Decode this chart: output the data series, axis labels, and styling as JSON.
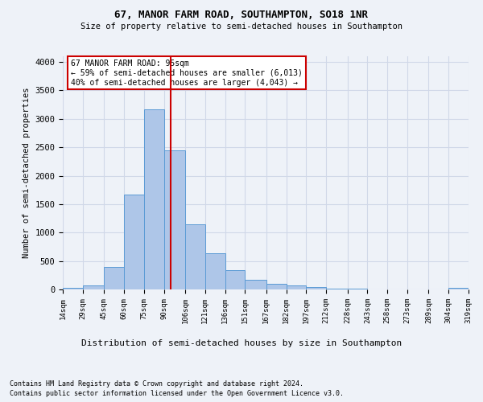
{
  "title1": "67, MANOR FARM ROAD, SOUTHAMPTON, SO18 1NR",
  "title2": "Size of property relative to semi-detached houses in Southampton",
  "xlabel": "Distribution of semi-detached houses by size in Southampton",
  "ylabel": "Number of semi-detached properties",
  "footnote1": "Contains HM Land Registry data © Crown copyright and database right 2024.",
  "footnote2": "Contains public sector information licensed under the Open Government Licence v3.0.",
  "annotation_title": "67 MANOR FARM ROAD: 95sqm",
  "annotation_line1": "← 59% of semi-detached houses are smaller (6,013)",
  "annotation_line2": "40% of semi-detached houses are larger (4,043) →",
  "property_size": 95,
  "bin_edges": [
    14,
    29,
    45,
    60,
    75,
    90,
    106,
    121,
    136,
    151,
    167,
    182,
    197,
    212,
    228,
    243,
    258,
    273,
    289,
    304,
    319
  ],
  "bar_heights": [
    30,
    75,
    390,
    1670,
    3160,
    2450,
    1150,
    630,
    340,
    165,
    100,
    65,
    40,
    20,
    10,
    5,
    3,
    2,
    1,
    30
  ],
  "bar_color": "#aec6e8",
  "bar_edge_color": "#5b9bd5",
  "vline_color": "#cc0000",
  "grid_color": "#d0d8e8",
  "background_color": "#eef2f8",
  "annotation_box_color": "#ffffff",
  "annotation_box_edge": "#cc0000",
  "ylim": [
    0,
    4100
  ],
  "yticks": [
    0,
    500,
    1000,
    1500,
    2000,
    2500,
    3000,
    3500,
    4000
  ]
}
